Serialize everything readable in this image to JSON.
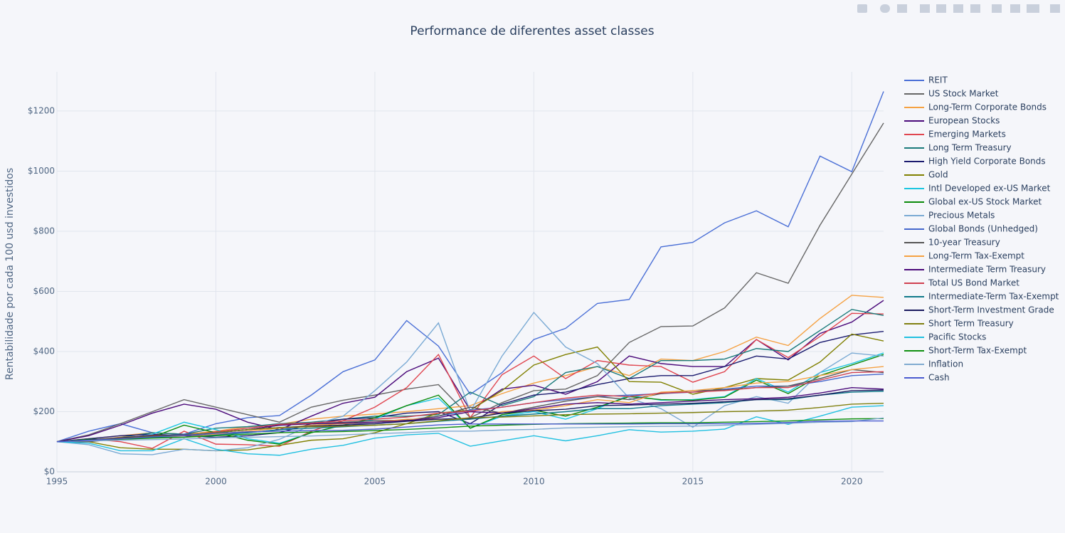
{
  "chart_data": {
    "type": "line",
    "title": "Performance de diferentes asset classes",
    "y_label": "Rentabilidade por cada 100 usd investidos",
    "x": [
      1995,
      1996,
      1997,
      1998,
      1999,
      2000,
      2001,
      2002,
      2003,
      2004,
      2005,
      2006,
      2007,
      2008,
      2009,
      2010,
      2011,
      2012,
      2013,
      2014,
      2015,
      2016,
      2017,
      2018,
      2019,
      2020,
      2021
    ],
    "xlim": [
      1995,
      2021
    ],
    "xticks": [
      1995,
      2000,
      2005,
      2010,
      2015,
      2020
    ],
    "ylim": [
      0,
      1330
    ],
    "yticks": [
      {
        "value": 0,
        "label": "$0"
      },
      {
        "value": 200,
        "label": "$200"
      },
      {
        "value": 400,
        "label": "$400"
      },
      {
        "value": 600,
        "label": "$600"
      },
      {
        "value": 800,
        "label": "$800"
      },
      {
        "value": 1000,
        "label": "$1000"
      },
      {
        "value": 1200,
        "label": "$1200"
      }
    ],
    "grid": true,
    "legend": "right",
    "series": [
      {
        "name": "REIT",
        "color": "#4a6fd6",
        "values": [
          100,
          135,
          160,
          130,
          125,
          160,
          180,
          187,
          255,
          333,
          372,
          503,
          418,
          258,
          330,
          440,
          477,
          560,
          573,
          748,
          763,
          828,
          868,
          815,
          1050,
          998,
          1265
        ]
      },
      {
        "name": "US Stock Market",
        "color": "#666666",
        "values": [
          100,
          123,
          160,
          200,
          240,
          215,
          190,
          165,
          215,
          238,
          255,
          275,
          290,
          180,
          230,
          270,
          275,
          320,
          430,
          483,
          485,
          545,
          662,
          627,
          820,
          990,
          1160
        ]
      },
      {
        "name": "Long-Term Corporate Bonds",
        "color": "#f5a142",
        "values": [
          100,
          110,
          120,
          130,
          125,
          135,
          150,
          158,
          175,
          185,
          192,
          200,
          210,
          220,
          260,
          295,
          320,
          350,
          320,
          375,
          370,
          400,
          448,
          420,
          510,
          587,
          580
        ]
      },
      {
        "name": "European Stocks",
        "color": "#4b0a7a",
        "values": [
          100,
          120,
          155,
          195,
          225,
          208,
          165,
          140,
          185,
          228,
          248,
          333,
          378,
          205,
          275,
          288,
          258,
          300,
          385,
          360,
          350,
          350,
          440,
          372,
          460,
          498,
          570
        ]
      },
      {
        "name": "Emerging Markets",
        "color": "#e0454f",
        "values": [
          100,
          110,
          100,
          78,
          135,
          92,
          90,
          85,
          135,
          170,
          215,
          280,
          390,
          180,
          323,
          385,
          310,
          370,
          355,
          350,
          298,
          333,
          440,
          380,
          450,
          527,
          525
        ]
      },
      {
        "name": "Long Term Treasury",
        "color": "#1a7a7a",
        "values": [
          100,
          100,
          115,
          130,
          125,
          145,
          150,
          160,
          165,
          175,
          185,
          185,
          190,
          265,
          220,
          250,
          330,
          350,
          310,
          370,
          370,
          375,
          410,
          400,
          470,
          540,
          520
        ]
      },
      {
        "name": "High Yield Corporate Bonds",
        "color": "#1a1a6e",
        "values": [
          100,
          110,
          120,
          125,
          120,
          115,
          120,
          130,
          160,
          175,
          180,
          195,
          200,
          160,
          225,
          255,
          265,
          290,
          310,
          320,
          320,
          350,
          385,
          375,
          430,
          455,
          467
        ]
      },
      {
        "name": "Gold",
        "color": "#808000",
        "values": [
          100,
          100,
          80,
          75,
          75,
          70,
          73,
          88,
          105,
          110,
          130,
          160,
          195,
          205,
          270,
          355,
          390,
          415,
          300,
          298,
          258,
          280,
          310,
          305,
          365,
          458,
          435
        ]
      },
      {
        "name": "Intl Developed ex-US Market",
        "color": "#1ac6e0",
        "values": [
          100,
          105,
          108,
          125,
          165,
          140,
          110,
          95,
          130,
          155,
          175,
          220,
          245,
          145,
          185,
          200,
          175,
          210,
          255,
          238,
          240,
          250,
          310,
          265,
          330,
          360,
          395
        ]
      },
      {
        "name": "Global ex-US Stock Market",
        "color": "#0a8a0a",
        "values": [
          100,
          108,
          110,
          115,
          155,
          130,
          105,
          92,
          130,
          155,
          180,
          220,
          255,
          145,
          190,
          205,
          185,
          215,
          250,
          240,
          238,
          248,
          305,
          260,
          320,
          355,
          390
        ]
      },
      {
        "name": "Precious Metals",
        "color": "#7aaad4",
        "values": [
          100,
          90,
          60,
          57,
          75,
          70,
          80,
          108,
          155,
          185,
          270,
          365,
          495,
          200,
          385,
          530,
          415,
          360,
          245,
          210,
          148,
          220,
          250,
          228,
          330,
          395,
          385
        ]
      },
      {
        "name": "Global Bonds (Unhedged)",
        "color": "#4466cc",
        "values": [
          100,
          105,
          110,
          120,
          125,
          125,
          130,
          140,
          155,
          160,
          160,
          170,
          185,
          205,
          215,
          230,
          240,
          250,
          255,
          260,
          265,
          275,
          285,
          285,
          300,
          320,
          325
        ]
      },
      {
        "name": "10-year Treasury",
        "color": "#555555",
        "values": [
          100,
          100,
          110,
          120,
          115,
          130,
          140,
          155,
          160,
          165,
          170,
          172,
          185,
          215,
          195,
          215,
          235,
          250,
          240,
          260,
          270,
          272,
          280,
          285,
          310,
          340,
          330
        ]
      },
      {
        "name": "Long-Term Tax-Exempt",
        "color": "#f5a142",
        "values": [
          100,
          105,
          115,
          120,
          115,
          125,
          135,
          145,
          155,
          160,
          165,
          175,
          175,
          175,
          200,
          205,
          220,
          240,
          230,
          265,
          270,
          280,
          295,
          300,
          320,
          340,
          350
        ]
      },
      {
        "name": "Intermediate Term Treasury",
        "color": "#4b0a7a",
        "values": [
          100,
          105,
          110,
          120,
          120,
          130,
          140,
          155,
          160,
          162,
          165,
          170,
          180,
          200,
          195,
          210,
          225,
          230,
          225,
          230,
          235,
          240,
          243,
          248,
          262,
          280,
          275
        ]
      },
      {
        "name": "Total US Bond Market",
        "color": "#d04050",
        "values": [
          100,
          105,
          112,
          122,
          120,
          133,
          145,
          158,
          162,
          170,
          175,
          182,
          195,
          202,
          215,
          230,
          245,
          255,
          250,
          262,
          265,
          270,
          280,
          280,
          305,
          330,
          333
        ]
      },
      {
        "name": "Intermediate-Term Tax-Exempt",
        "color": "#107a8a",
        "values": [
          100,
          104,
          110,
          115,
          115,
          122,
          130,
          140,
          145,
          150,
          155,
          160,
          168,
          175,
          185,
          192,
          200,
          210,
          210,
          220,
          225,
          230,
          240,
          240,
          255,
          265,
          268
        ]
      },
      {
        "name": "Short-Term Investment Grade",
        "color": "#1a1a5e",
        "values": [
          100,
          106,
          113,
          120,
          123,
          130,
          140,
          147,
          152,
          155,
          160,
          168,
          175,
          178,
          195,
          203,
          208,
          220,
          222,
          225,
          228,
          233,
          240,
          243,
          255,
          270,
          272
        ]
      },
      {
        "name": "Short Term Treasury",
        "color": "#808010",
        "values": [
          100,
          105,
          111,
          118,
          122,
          130,
          140,
          147,
          150,
          152,
          155,
          160,
          170,
          180,
          182,
          186,
          190,
          192,
          193,
          195,
          197,
          200,
          202,
          205,
          214,
          225,
          228
        ]
      },
      {
        "name": "Pacific Stocks",
        "color": "#20c0e0",
        "values": [
          100,
          95,
          70,
          70,
          110,
          75,
          60,
          55,
          75,
          88,
          112,
          123,
          128,
          85,
          103,
          120,
          103,
          120,
          140,
          132,
          135,
          142,
          183,
          158,
          185,
          215,
          220
        ]
      },
      {
        "name": "Short-Term Tax-Exempt",
        "color": "#109010",
        "values": [
          100,
          104,
          108,
          112,
          115,
          120,
          125,
          130,
          132,
          134,
          137,
          141,
          146,
          152,
          155,
          158,
          160,
          161,
          162,
          163,
          163,
          165,
          167,
          169,
          173,
          176,
          177
        ]
      },
      {
        "name": "Inflation",
        "color": "#80aad0",
        "values": [
          100,
          103,
          105,
          107,
          109,
          113,
          115,
          117,
          119,
          123,
          127,
          130,
          135,
          135,
          139,
          141,
          146,
          148,
          150,
          151,
          152,
          155,
          158,
          161,
          165,
          167,
          179
        ]
      },
      {
        "name": "Cash",
        "color": "#4a5ad0",
        "values": [
          100,
          105,
          110,
          116,
          121,
          128,
          133,
          135,
          137,
          138,
          142,
          149,
          156,
          159,
          159,
          159,
          159,
          159,
          159,
          160,
          160,
          160,
          161,
          164,
          168,
          169,
          169
        ]
      }
    ]
  }
}
